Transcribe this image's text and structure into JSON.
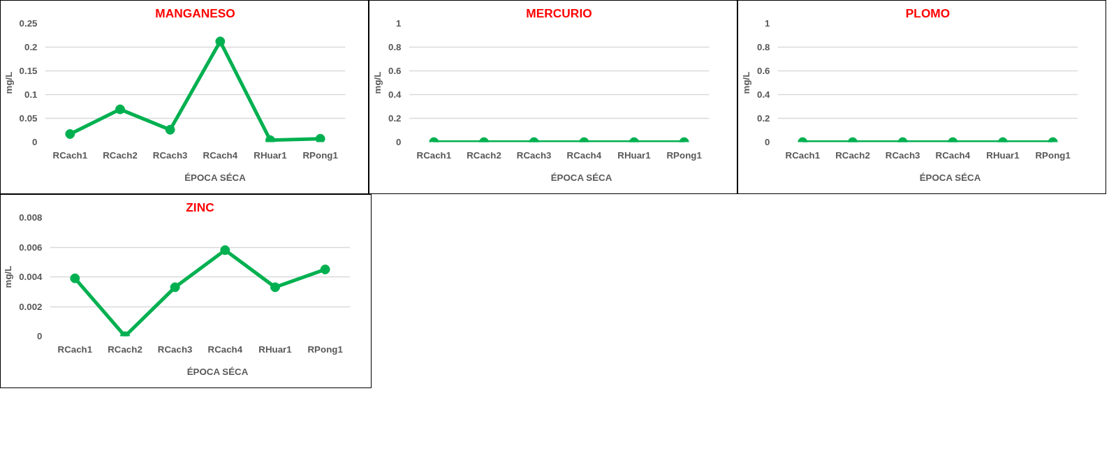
{
  "chart_data": [
    {
      "type": "line",
      "title": "MANGANESO",
      "ylabel": "mg/L",
      "categories": [
        "RCach1",
        "RCach2",
        "RCach3",
        "RCach4",
        "RHuar1",
        "RPong1"
      ],
      "series": [
        {
          "name": "ÉPOCA SÉCA",
          "color": "#00b050",
          "values": [
            0.017,
            0.069,
            0.026,
            0.212,
            0.004,
            0.007
          ]
        }
      ],
      "ylim": [
        0,
        0.25
      ],
      "yticks": [
        0,
        0.05,
        0.1,
        0.15,
        0.2,
        0.25
      ],
      "grid": "y",
      "legend": "bottom",
      "marker": "circle"
    },
    {
      "type": "line",
      "title": "MERCURIO",
      "ylabel": "mg/L",
      "categories": [
        "RCach1",
        "RCach2",
        "RCach3",
        "RCach4",
        "RHuar1",
        "RPong1"
      ],
      "series": [
        {
          "name": "ÉPOCA SÉCA",
          "color": "#00b050",
          "values": [
            0,
            0,
            0,
            0,
            0,
            0
          ]
        }
      ],
      "ylim": [
        0,
        1
      ],
      "yticks": [
        0,
        0.2,
        0.4,
        0.6,
        0.8,
        1
      ],
      "grid": "y",
      "legend": "bottom",
      "marker": "circle"
    },
    {
      "type": "line",
      "title": "PLOMO",
      "ylabel": "mg/L",
      "categories": [
        "RCach1",
        "RCach2",
        "RCach3",
        "RCach4",
        "RHuar1",
        "RPong1"
      ],
      "series": [
        {
          "name": "ÉPOCA SÉCA",
          "color": "#00b050",
          "values": [
            0,
            0,
            0,
            0,
            0,
            0
          ]
        }
      ],
      "ylim": [
        0,
        1
      ],
      "yticks": [
        0,
        0.2,
        0.4,
        0.6,
        0.8,
        1
      ],
      "grid": "y",
      "legend": "bottom",
      "marker": "circle"
    },
    {
      "type": "line",
      "title": "ZINC",
      "ylabel": "mg/L",
      "categories": [
        "RCach1",
        "RCach2",
        "RCach3",
        "RCach4",
        "RHuar1",
        "RPong1"
      ],
      "series": [
        {
          "name": "ÉPOCA SÉCA",
          "color": "#00b050",
          "values": [
            0.0039,
            0,
            0.0033,
            0.0058,
            0.0033,
            0.0045
          ]
        }
      ],
      "ylim": [
        0,
        0.008
      ],
      "yticks": [
        0,
        0.002,
        0.004,
        0.006,
        0.008
      ],
      "grid": "y",
      "legend": "bottom",
      "marker": "circle"
    }
  ]
}
